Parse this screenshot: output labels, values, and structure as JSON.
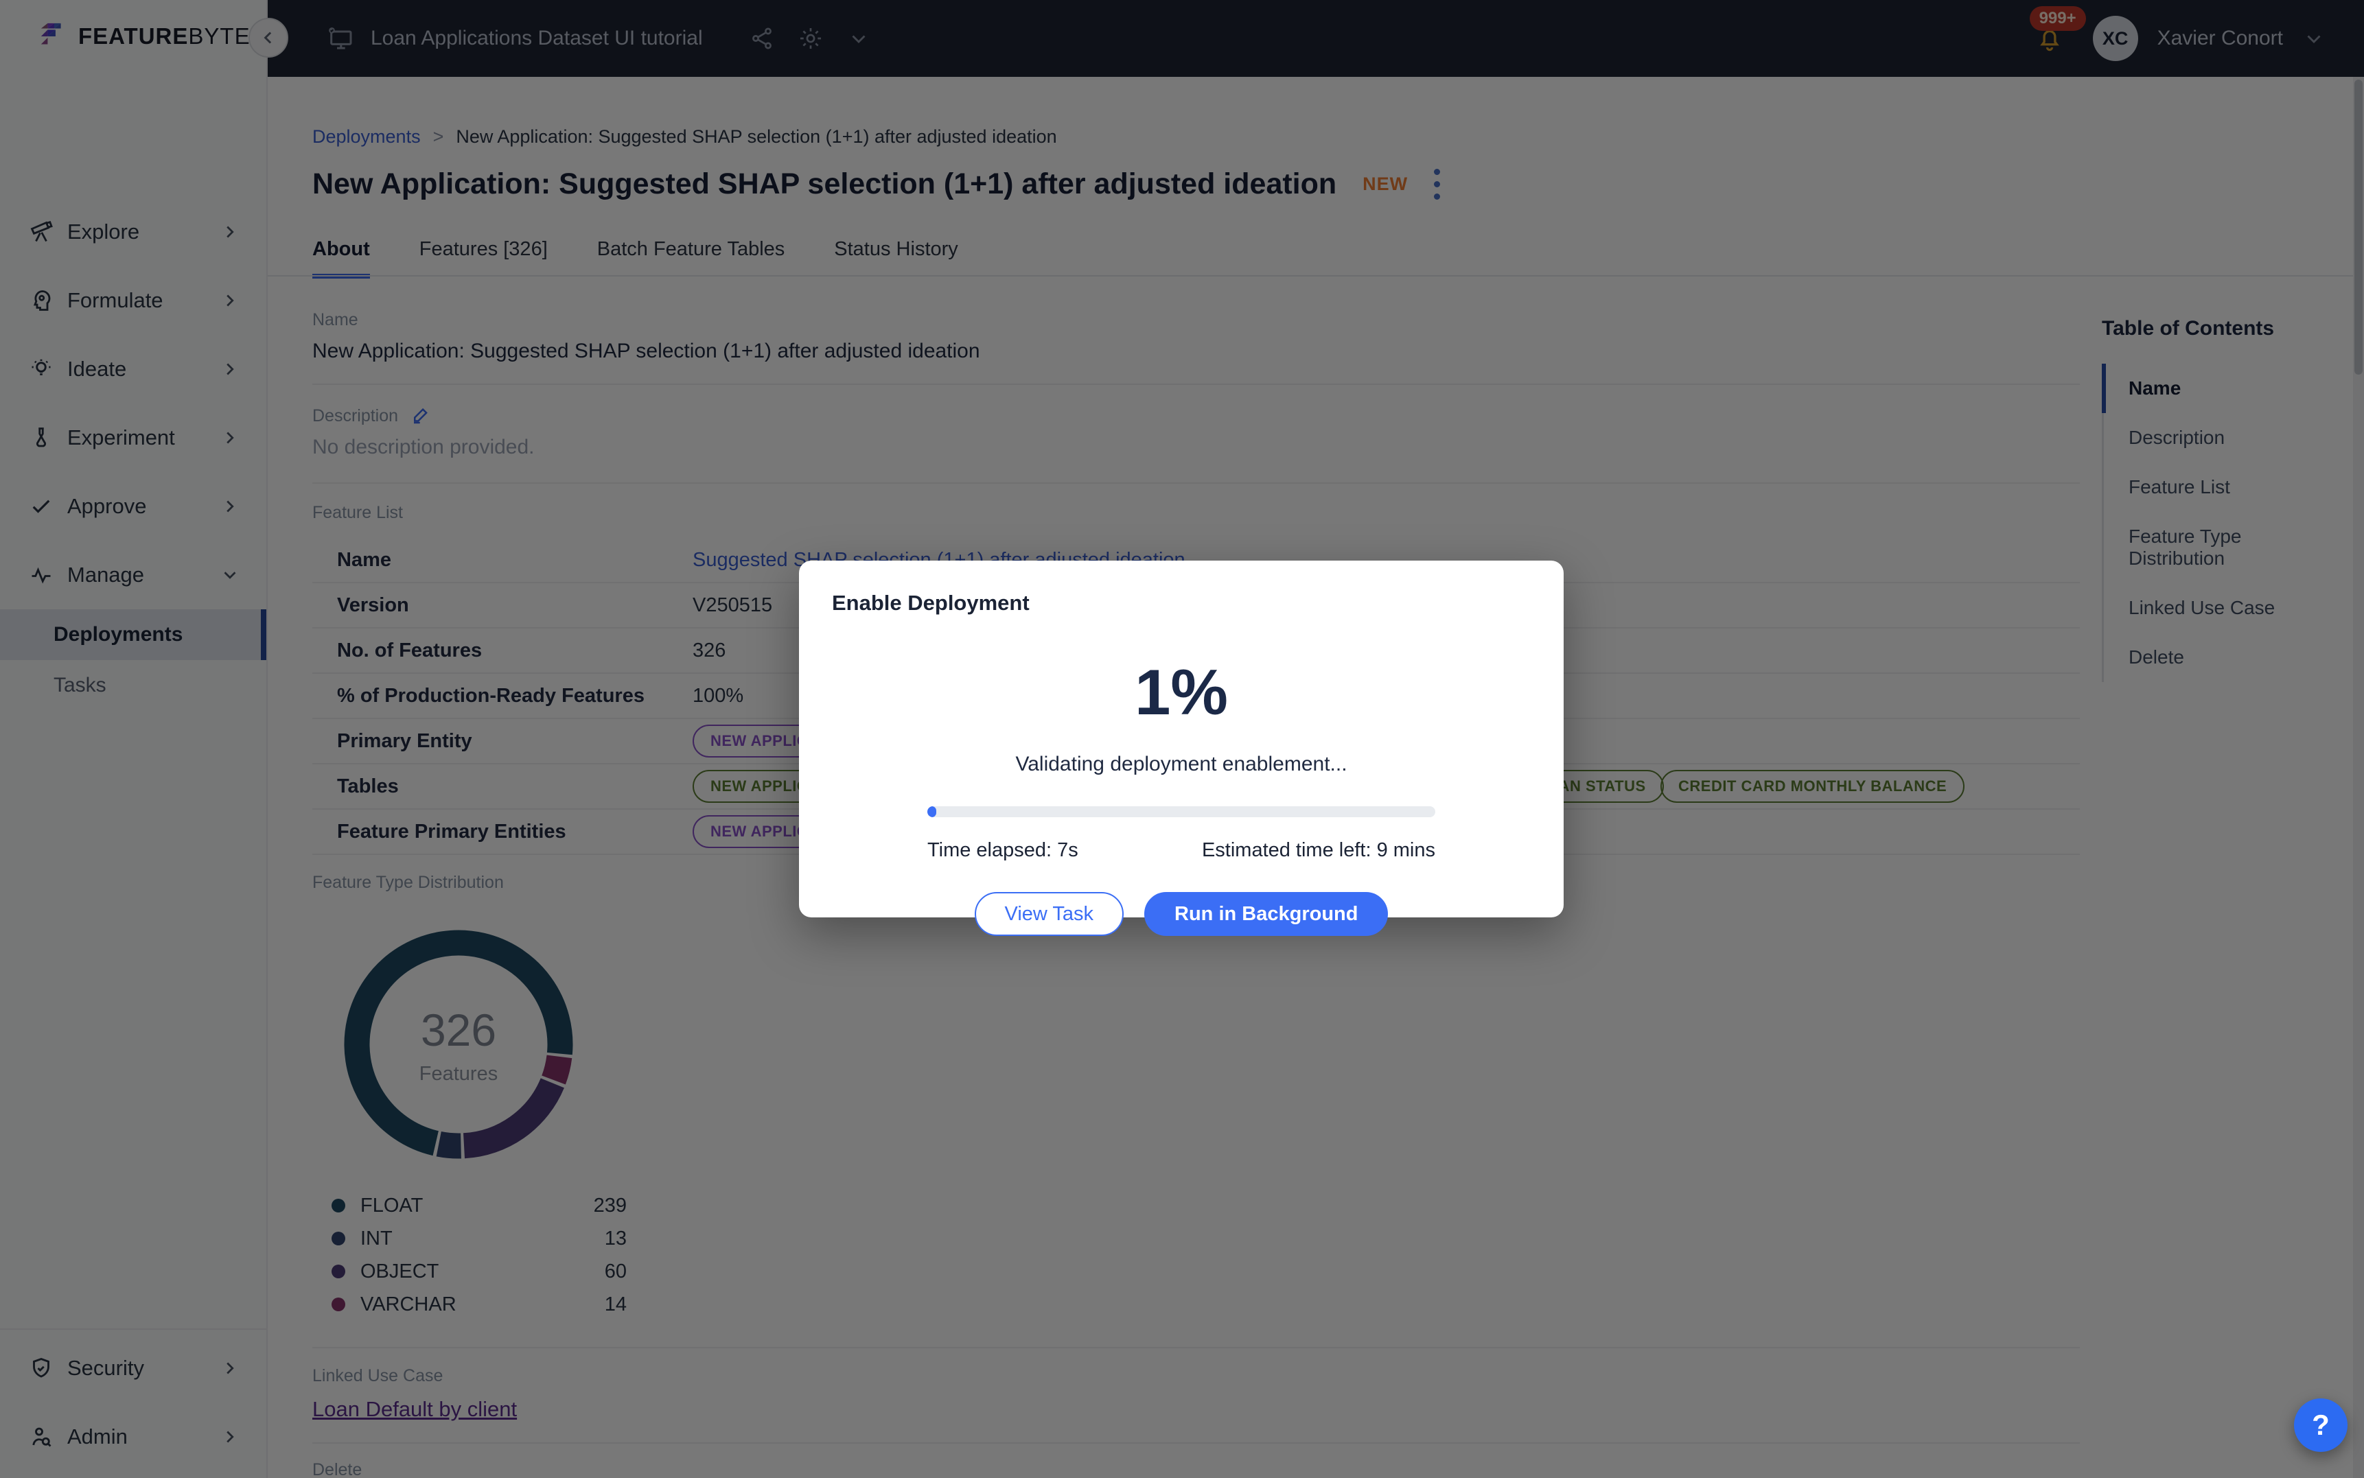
{
  "brand": {
    "bold": "FEATURE",
    "light": "BYTE"
  },
  "topbar": {
    "workspace_title": "Loan Applications Dataset UI tutorial",
    "notification_count": "999+",
    "avatar_initials": "XC",
    "user_name": "Xavier Conort"
  },
  "sidebar": {
    "items": [
      {
        "label": "Explore",
        "icon": "telescope-icon",
        "chevron": "right"
      },
      {
        "label": "Formulate",
        "icon": "head-gear-icon",
        "chevron": "right"
      },
      {
        "label": "Ideate",
        "icon": "lightbulb-icon",
        "chevron": "right"
      },
      {
        "label": "Experiment",
        "icon": "flask-icon",
        "chevron": "right"
      },
      {
        "label": "Approve",
        "icon": "check-icon",
        "chevron": "right"
      },
      {
        "label": "Manage",
        "icon": "pulse-icon",
        "chevron": "down",
        "children": [
          {
            "label": "Deployments",
            "active": true
          },
          {
            "label": "Tasks",
            "active": false
          }
        ]
      }
    ],
    "bottom_items": [
      {
        "label": "Security",
        "icon": "shield-check-icon",
        "chevron": "right"
      },
      {
        "label": "Admin",
        "icon": "user-search-icon",
        "chevron": "right"
      }
    ]
  },
  "breadcrumb": {
    "root": "Deployments",
    "separator": ">",
    "current": "New Application: Suggested SHAP selection (1+1) after adjusted ideation"
  },
  "page": {
    "title": "New Application: Suggested SHAP selection (1+1) after adjusted ideation",
    "badge": "NEW"
  },
  "tabs": [
    {
      "label": "About",
      "active": true
    },
    {
      "label": "Features [326]",
      "active": false
    },
    {
      "label": "Batch Feature Tables",
      "active": false
    },
    {
      "label": "Status History",
      "active": false
    }
  ],
  "sections": {
    "name": {
      "label": "Name",
      "value": "New Application: Suggested SHAP selection (1+1) after adjusted ideation"
    },
    "description": {
      "label": "Description",
      "value": "No description provided."
    },
    "feature_list": {
      "label": "Feature List",
      "rows": [
        {
          "label": "Name",
          "value": "Suggested SHAP selection (1+1) after adjusted ideation",
          "link": true
        },
        {
          "label": "Version",
          "value": "V250515"
        },
        {
          "label": "No. of Features",
          "value": "326"
        },
        {
          "label": "% of Production-Ready Features",
          "value": "100%"
        },
        {
          "label": "Primary Entity",
          "tags": [
            {
              "text": "NEW APPLICATION",
              "color": "purple"
            }
          ]
        },
        {
          "label": "Tables",
          "tags": [
            {
              "text": "NEW APPLICATION",
              "color": "green"
            },
            {
              "text": "LOAN STATUS",
              "color": "green"
            },
            {
              "text": "CREDIT CARD MONTHLY BALANCE",
              "color": "green"
            }
          ]
        },
        {
          "label": "Feature Primary Entities",
          "tags": [
            {
              "text": "NEW APPLICATION",
              "color": "purple"
            }
          ]
        }
      ]
    },
    "feature_type_distribution": {
      "label": "Feature Type Distribution"
    },
    "linked_use_case": {
      "label": "Linked Use Case",
      "link": "Loan Default by client"
    },
    "delete": {
      "label": "Delete"
    }
  },
  "chart_data": {
    "type": "donut",
    "title": "Feature Type Distribution",
    "center_value": "326",
    "center_label": "Features",
    "total": 326,
    "segments": [
      {
        "label": "FLOAT",
        "value": 239,
        "color": "#1f4a63"
      },
      {
        "label": "INT",
        "value": 13,
        "color": "#32456f"
      },
      {
        "label": "OBJECT",
        "value": 60,
        "color": "#4d3d77"
      },
      {
        "label": "VARCHAR",
        "value": 14,
        "color": "#86336a"
      }
    ],
    "draw_order": [
      "FLOAT",
      "VARCHAR",
      "OBJECT",
      "INT"
    ],
    "start_angle_deg": 193,
    "legend_position": "below-left"
  },
  "toc": {
    "title": "Table of Contents",
    "items": [
      {
        "label": "Name",
        "active": true
      },
      {
        "label": "Description",
        "active": false
      },
      {
        "label": "Feature List",
        "active": false
      },
      {
        "label": "Feature Type Distribution",
        "active": false
      },
      {
        "label": "Linked Use Case",
        "active": false
      },
      {
        "label": "Delete",
        "active": false
      }
    ]
  },
  "modal": {
    "title": "Enable Deployment",
    "progress_pct": 1,
    "progress_display": "1%",
    "status": "Validating deployment enablement...",
    "time_elapsed": "Time elapsed: 7s",
    "time_left": "Estimated time left: 9 mins",
    "buttons": [
      {
        "label": "View Task",
        "variant": "outline"
      },
      {
        "label": "Run in Background",
        "variant": "primary"
      }
    ]
  },
  "help_label": "?",
  "colors": {
    "accent": "#3b6ef5",
    "topbar_bg": "#1e2534",
    "badge_red": "#c0392b",
    "new_badge": "#ef7d33",
    "tag_purple": "#8952c8",
    "tag_green": "#5d7d33",
    "danger_line": "#b23a2a",
    "toc_active_bar": "#2a4da8"
  }
}
